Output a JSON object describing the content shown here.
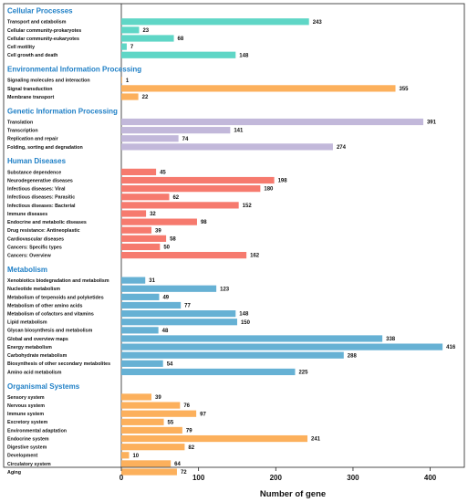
{
  "chart_data": {
    "type": "bar",
    "orientation": "horizontal",
    "xlabel": "Number of gene",
    "ylabel": "",
    "xlim": [
      0,
      440
    ],
    "xticks": [
      0,
      100,
      200,
      300,
      400
    ],
    "grid": false,
    "groups": [
      {
        "name": "Cellular Processes",
        "color": "#5fd6c6",
        "categories": [
          "Transport and catabolism",
          "Cellular community-prokaryotes",
          "Cellular community-eukaryotes",
          "Cell motility",
          "Cell growth and death"
        ],
        "values": [
          243,
          23,
          68,
          7,
          148
        ]
      },
      {
        "name": "Environmental Information Processing",
        "color": "#fcb05c",
        "categories": [
          "Signaling molecules and interaction",
          "Signal transduction",
          "Membrane transport"
        ],
        "values": [
          1,
          355,
          22
        ]
      },
      {
        "name": "Genetic Information Processing",
        "color": "#c2b8da",
        "categories": [
          "Translation",
          "Transcription",
          "Replication and repair",
          "Folding, sorting and degradation"
        ],
        "values": [
          391,
          141,
          74,
          274
        ]
      },
      {
        "name": "Human Diseases",
        "color": "#f67a6e",
        "categories": [
          "Substance dependence",
          "Neurodegenerative diseases",
          "Infectious diseases: Viral",
          "Infectious diseases: Parasitic",
          "Infectious diseases: Bacterial",
          "Immune diseases",
          "Endocrine and metabolic diseases",
          "Drug resistance: Antineoplastic",
          "Cardiovascular diseases",
          "Cancers: Specific types",
          "Cancers: Overview"
        ],
        "values": [
          45,
          198,
          180,
          62,
          152,
          32,
          98,
          39,
          58,
          50,
          162
        ]
      },
      {
        "name": "Metabolism",
        "color": "#66b1d4",
        "categories": [
          "Xenobiotics biodegradation and metabolism",
          "Nucleotide metabolism",
          "Metabolism of terpenoids and polyketides",
          "Metabolism of other amino acids",
          "Metabolism of cofactors and vitamins",
          "Lipid metabolism",
          "Glycan biosynthesis and metabolism",
          "Global and overview maps",
          "Energy metabolism",
          "Carbohydrate metabolism",
          "Biosynthesis of other secondary metabolites",
          "Amino acid metabolism"
        ],
        "values": [
          31,
          123,
          49,
          77,
          148,
          150,
          48,
          338,
          416,
          288,
          54,
          225
        ]
      },
      {
        "name": "Organismal Systems",
        "color": "#fcb05c",
        "categories": [
          "Sensory system",
          "Nervous system",
          "Immune system",
          "Excretory system",
          "Environmental adaptation",
          "Endocrine system",
          "Digestive system",
          "Development",
          "Circulatory system",
          "Aging"
        ],
        "values": [
          39,
          76,
          97,
          55,
          79,
          241,
          82,
          10,
          64,
          72
        ]
      }
    ]
  }
}
